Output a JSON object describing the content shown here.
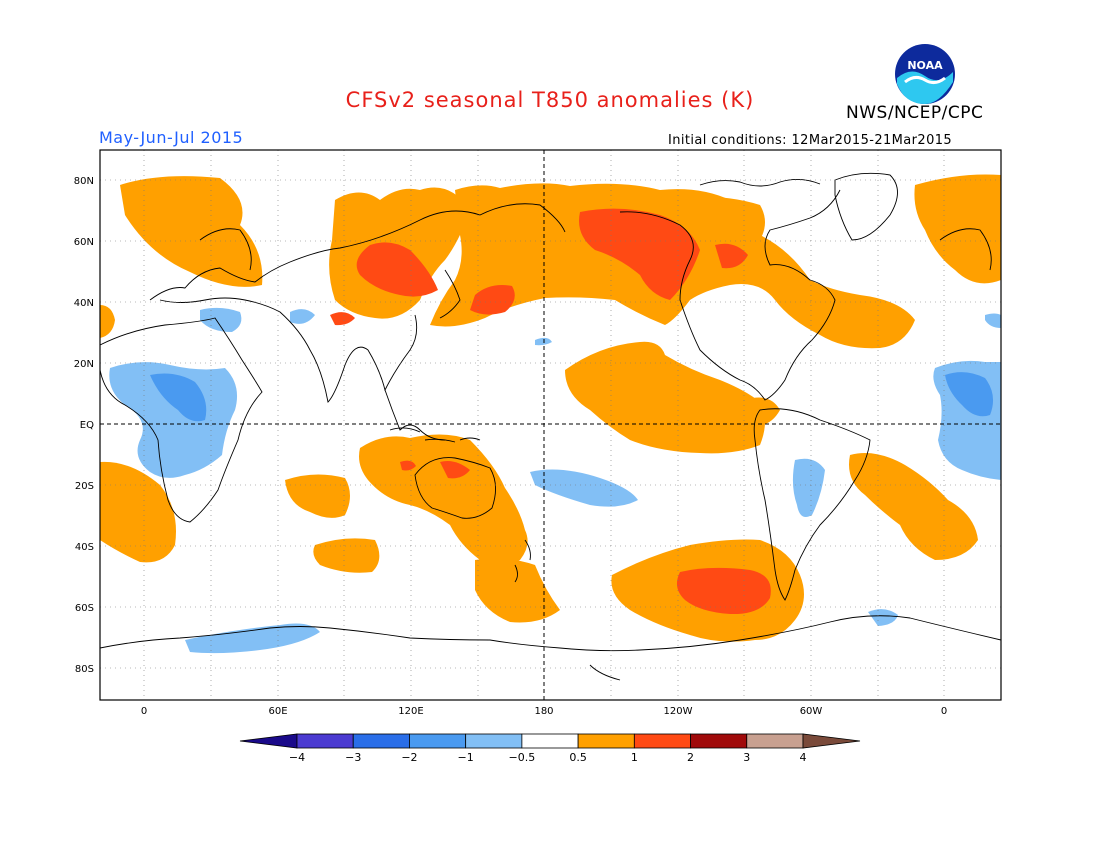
{
  "map": {
    "title": "CFSv2 seasonal T850 anomalies (K)",
    "period": "May-Jun-Jul 2015",
    "agency": "NWS/NCEP/CPC",
    "initial_conditions": "Initial conditions: 12Mar2015-21Mar2015",
    "logo_text": "NOAA",
    "variable": "T850 anomaly",
    "units": "K",
    "lat_labels": [
      "80N",
      "60N",
      "40N",
      "20N",
      "EQ",
      "20S",
      "40S",
      "60S",
      "80S"
    ],
    "lon_labels": [
      "0",
      "60E",
      "120E",
      "180",
      "120W",
      "60W",
      "0"
    ]
  },
  "colorbar": {
    "labels": [
      "-4",
      "-3",
      "-2",
      "-1",
      "-0.5",
      "0.5",
      "1",
      "2",
      "3",
      "4"
    ],
    "colors": [
      "#1a0a8a",
      "#4b3bd1",
      "#2a6ee8",
      "#4a9af0",
      "#82bff5",
      "#ffffff",
      "#ffa000",
      "#ff4a14",
      "#a00a0a",
      "#c8a090",
      "#7a4a3a"
    ]
  },
  "palette": {
    "warm1": "#ffa000",
    "warm2": "#ff4a14",
    "cool1": "#82bff5",
    "cool2": "#4a9af0",
    "coast": "#000000",
    "title": "#e8201a",
    "period": "#2060ff"
  }
}
